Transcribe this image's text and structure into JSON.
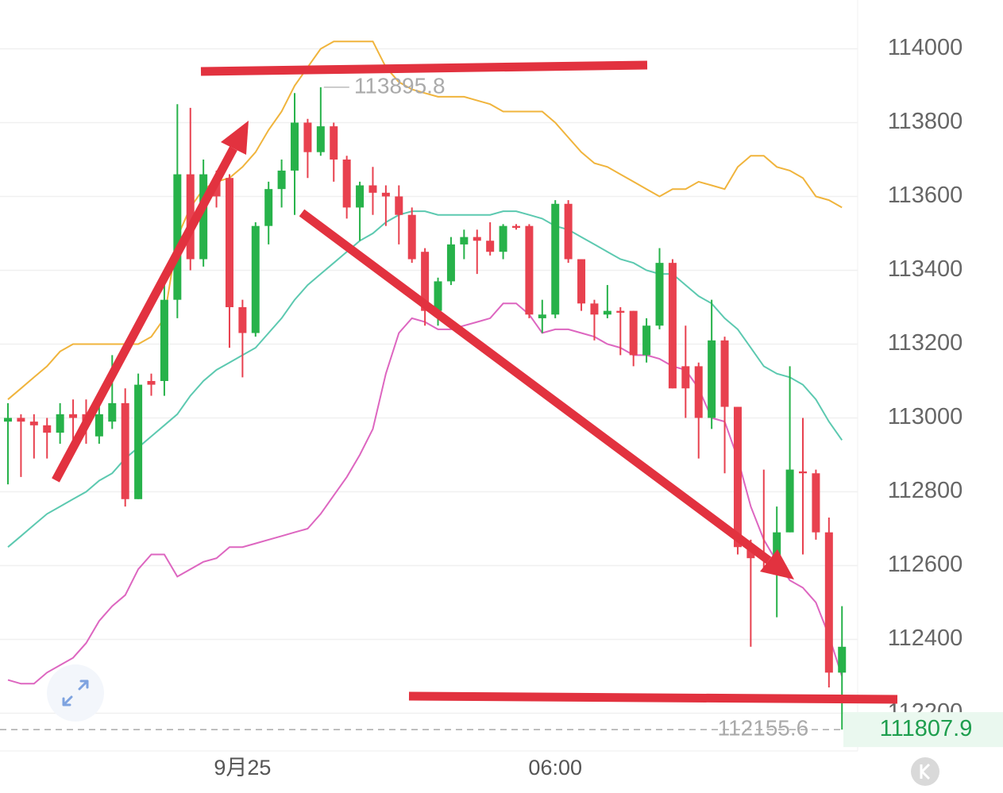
{
  "chart_data": {
    "type": "candlestick",
    "categories": [
      null,
      null,
      null,
      null,
      null,
      null,
      null,
      null,
      null,
      null,
      null,
      null,
      null,
      null,
      null,
      null,
      null,
      null,
      "9月25",
      null,
      null,
      null,
      null,
      null,
      null,
      null,
      null,
      null,
      null,
      null,
      null,
      null,
      null,
      null,
      null,
      null,
      null,
      null,
      null,
      null,
      null,
      null,
      "06:00",
      null,
      null,
      null,
      null,
      null,
      null,
      null,
      null,
      null,
      null,
      null,
      null,
      null,
      null,
      null,
      null,
      null,
      null,
      null,
      null,
      null,
      null
    ],
    "open": [
      112990,
      113000,
      112990,
      112980,
      112960,
      113010,
      113010,
      112950,
      112990,
      113040,
      112780,
      113100,
      113100,
      113320,
      113660,
      113430,
      113640,
      113650,
      113300,
      113230,
      113520,
      113620,
      113670,
      113800,
      113720,
      113790,
      113700,
      113570,
      113630,
      113610,
      113600,
      113550,
      113450,
      113290,
      113370,
      113470,
      113490,
      113480,
      113450,
      113520,
      113520,
      113270,
      113280,
      113580,
      113430,
      113310,
      113280,
      113290,
      113290,
      113170,
      113250,
      113420,
      113140,
      113140,
      113000,
      113210,
      113030,
      112650,
      112630,
      112620,
      112690,
      112855,
      112850,
      112690,
      112310
    ],
    "close": [
      113000,
      112990,
      112980,
      112960,
      113010,
      113000,
      112980,
      113010,
      113040,
      112780,
      113090,
      113090,
      113320,
      113660,
      113430,
      113660,
      113600,
      113300,
      113230,
      113520,
      113620,
      113670,
      113800,
      113720,
      113790,
      113700,
      113570,
      113630,
      113610,
      113600,
      113550,
      113430,
      113290,
      113370,
      113470,
      113490,
      113480,
      113450,
      113520,
      113515,
      113280,
      113280,
      113580,
      113430,
      113310,
      113280,
      113290,
      113285,
      113170,
      113250,
      113420,
      113080,
      113080,
      113000,
      113210,
      113030,
      112650,
      112620,
      112620,
      112690,
      112860,
      112850,
      112690,
      112310,
      112380
    ],
    "high": [
      113040,
      113010,
      113010,
      113000,
      113040,
      113050,
      113050,
      113040,
      113170,
      113080,
      113120,
      113120,
      113380,
      113850,
      113840,
      113700,
      113670,
      113660,
      113320,
      113530,
      113640,
      113700,
      113880,
      113810,
      113895.8,
      113800,
      113710,
      113640,
      113680,
      113630,
      113630,
      113570,
      113460,
      113380,
      113490,
      113510,
      113510,
      113530,
      113525,
      113525,
      113525,
      113320,
      113590,
      113590,
      113430,
      113320,
      113360,
      113300,
      113290,
      113270,
      113460,
      113430,
      113250,
      113150,
      113320,
      113220,
      113030,
      112670,
      112860,
      112760,
      113140,
      113000,
      112860,
      112730,
      112490
    ],
    "low": [
      112820,
      112840,
      112890,
      112890,
      112930,
      112930,
      112930,
      112930,
      112970,
      112760,
      112780,
      113060,
      113060,
      113270,
      113400,
      113410,
      113570,
      113190,
      113110,
      113220,
      113470,
      113570,
      113550,
      113650,
      113710,
      113640,
      113540,
      113480,
      113550,
      113520,
      113470,
      113420,
      113250,
      113250,
      113360,
      113430,
      113390,
      113440,
      113430,
      113510,
      113270,
      113230,
      113270,
      113420,
      113290,
      113210,
      113270,
      113170,
      113140,
      113150,
      113240,
      113080,
      113000,
      112890,
      112970,
      112850,
      112630,
      112380,
      112590,
      112460,
      112690,
      112630,
      112670,
      112270,
      112155.6
    ],
    "up_color": "#27b24a",
    "down_color": "#e8414f",
    "lines": [
      {
        "color": "#f0b43c",
        "values": [
          113050,
          113080,
          113110,
          113140,
          113180,
          113200,
          113200,
          113200,
          113200,
          113200,
          113200,
          113220,
          113270,
          113490,
          113570,
          113620,
          113640,
          113650,
          113680,
          113720,
          113780,
          113830,
          113900,
          113950,
          114000,
          114020,
          114020,
          114020,
          114020,
          113950,
          113910,
          113890,
          113880,
          113870,
          113870,
          113870,
          113860,
          113850,
          113830,
          113830,
          113830,
          113830,
          113800,
          113760,
          113720,
          113690,
          113680,
          113660,
          113640,
          113620,
          113600,
          113620,
          113620,
          113640,
          113630,
          113620,
          113680,
          113710,
          113710,
          113680,
          113670,
          113650,
          113600,
          113590,
          113570
        ]
      },
      {
        "color": "#5cc9b0",
        "values": [
          112650,
          112680,
          112710,
          112740,
          112760,
          112780,
          112800,
          112830,
          112850,
          112890,
          112920,
          112950,
          112980,
          113010,
          113060,
          113100,
          113130,
          113150,
          113170,
          113190,
          113230,
          113270,
          113320,
          113360,
          113390,
          113420,
          113450,
          113480,
          113500,
          113530,
          113550,
          113560,
          113560,
          113550,
          113550,
          113550,
          113550,
          113550,
          113560,
          113560,
          113550,
          113540,
          113520,
          113510,
          113490,
          113470,
          113450,
          113430,
          113420,
          113400,
          113390,
          113390,
          113360,
          113330,
          113310,
          113270,
          113240,
          113190,
          113140,
          113120,
          113110,
          113090,
          113050,
          112990,
          112940
        ]
      },
      {
        "color": "#dd66c0",
        "values": [
          112290,
          112280,
          112280,
          112310,
          112330,
          112350,
          112390,
          112450,
          112490,
          112520,
          112590,
          112630,
          112630,
          112570,
          112590,
          112610,
          112620,
          112650,
          112650,
          112660,
          112670,
          112680,
          112690,
          112700,
          112740,
          112790,
          112840,
          112900,
          112970,
          113120,
          113230,
          113270,
          113260,
          113240,
          113240,
          113250,
          113260,
          113270,
          113310,
          113310,
          113280,
          113230,
          113240,
          113240,
          113230,
          113220,
          113200,
          113190,
          113170,
          113170,
          113160,
          113140,
          113130,
          113080,
          113000,
          112990,
          112890,
          112760,
          112670,
          112610,
          112560,
          112540,
          112500,
          112410,
          112300
        ]
      }
    ],
    "ylim": [
      112100,
      114130
    ],
    "yticks": [
      112200,
      112400,
      112600,
      112800,
      113000,
      113200,
      113400,
      113600,
      113800,
      114000
    ],
    "grid": true,
    "current_price": 111807.9
  }
}
